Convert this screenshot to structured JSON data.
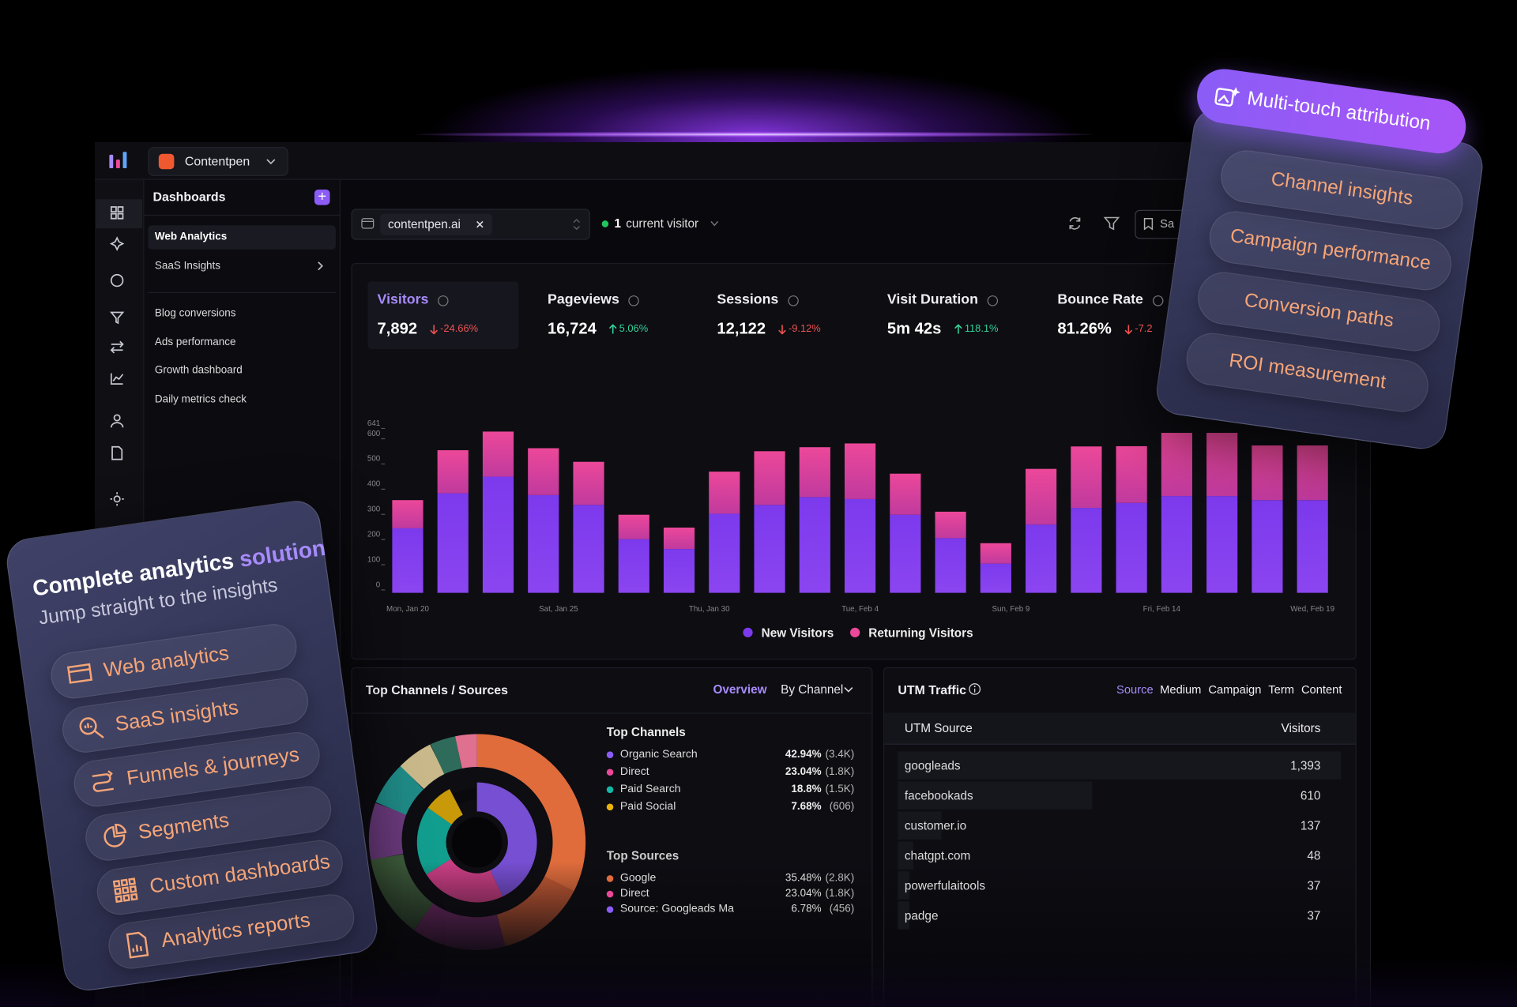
{
  "workspace": {
    "name": "Contentpen"
  },
  "nav": {
    "title": "Dashboards",
    "items": [
      "Web Analytics",
      "SaaS Insights"
    ],
    "custom": [
      "Blog conversions",
      "Ads performance",
      "Growth dashboard",
      "Daily metrics check"
    ]
  },
  "filter": {
    "domain": "contentpen.ai",
    "visitors_count": "1",
    "visitors_label": "current visitor",
    "save": "Sa"
  },
  "kpis": [
    {
      "label": "Visitors",
      "value": "7,892",
      "change": "-24.66%",
      "trend": "down"
    },
    {
      "label": "Pageviews",
      "value": "16,724",
      "change": "5.06%",
      "trend": "up"
    },
    {
      "label": "Sessions",
      "value": "12,122",
      "change": "-9.12%",
      "trend": "down"
    },
    {
      "label": "Visit Duration",
      "value": "5m 42s",
      "change": "118.1%",
      "trend": "up"
    },
    {
      "label": "Bounce Rate",
      "value": "81.26%",
      "change": "-7.2",
      "trend": "down"
    }
  ],
  "chart_data": {
    "type": "bar",
    "stacked": true,
    "x_labels": [
      "Mon, Jan 20",
      "Sat, Jan 25",
      "Thu, Jan 30",
      "Tue, Feb 4",
      "Sun, Feb 9",
      "Fri, Feb 14",
      "Wed, Feb 19"
    ],
    "series": [
      {
        "name": "New Visitors",
        "color": "#7c3aed",
        "values": [
          256,
          395,
          461,
          388,
          349,
          213,
          174,
          314,
          349,
          380,
          372,
          310,
          217,
          116,
          271,
          337,
          357,
          384,
          384,
          368,
          368
        ]
      },
      {
        "name": "Returning Visitors",
        "color": "#ec4899",
        "values": [
          112,
          171,
          179,
          186,
          171,
          97,
          85,
          167,
          213,
          198,
          221,
          163,
          105,
          81,
          221,
          244,
          225,
          251,
          251,
          217,
          217
        ]
      }
    ],
    "ylim": [
      0,
      641
    ],
    "yticks": [
      0,
      100,
      200,
      300,
      400,
      500,
      600,
      641
    ]
  },
  "channels": {
    "title": "Top Channels / Sources",
    "tabs": [
      "Overview",
      "By Channel"
    ],
    "top_channels": {
      "title": "Top Channels",
      "rows": [
        {
          "name": "Organic Search",
          "color": "#8b5cf6",
          "share": 42.94,
          "share_label": "42.94%",
          "count": "(3.4K)"
        },
        {
          "name": "Direct",
          "color": "#ec4899",
          "share": 23.04,
          "share_label": "23.04%",
          "count": "(1.8K)"
        },
        {
          "name": "Paid Search",
          "color": "#14b8a6",
          "share": 18.8,
          "share_label": "18.8%",
          "count": "(1.5K)"
        },
        {
          "name": "Paid Social",
          "color": "#eab308",
          "share": 7.68,
          "share_label": "7.68%",
          "count": "(606)"
        }
      ]
    },
    "top_sources": {
      "title": "Top Sources",
      "rows": [
        {
          "name": "Google",
          "share_label": "35.48%",
          "count": "(2.8K)"
        },
        {
          "name": "Direct",
          "share_label": "23.04%",
          "count": "(1.8K)"
        },
        {
          "name": "Source: Googleads Ma",
          "share_label": "6.78%",
          "count": "(456)"
        }
      ]
    }
  },
  "utm": {
    "title": "UTM Traffic",
    "tabs": [
      "Source",
      "Medium",
      "Campaign",
      "Term",
      "Content"
    ],
    "columns": [
      "UTM Source",
      "Visitors"
    ],
    "rows": [
      {
        "source": "googleads",
        "visitors": 1393,
        "visitors_label": "1,393"
      },
      {
        "source": "facebookads",
        "visitors": 610
      },
      {
        "source": "customer.io",
        "visitors": 137
      },
      {
        "source": "chatgpt.com",
        "visitors": 48
      },
      {
        "source": "powerfulaitools",
        "visitors": 37
      },
      {
        "source": "padge",
        "visitors": 37
      }
    ]
  },
  "promo_left": {
    "title": "Complete analytics",
    "title_accent": "solution",
    "subtitle": "Jump straight to the insights",
    "items": [
      "Web analytics",
      "SaaS insights",
      "Funnels & journeys",
      "Segments",
      "Custom dashboards",
      "Analytics reports"
    ]
  },
  "promo_right": {
    "title": "Multi-touch attribution",
    "items": [
      "Channel insights",
      "Campaign performance",
      "Conversion paths",
      "ROI measurement"
    ]
  }
}
